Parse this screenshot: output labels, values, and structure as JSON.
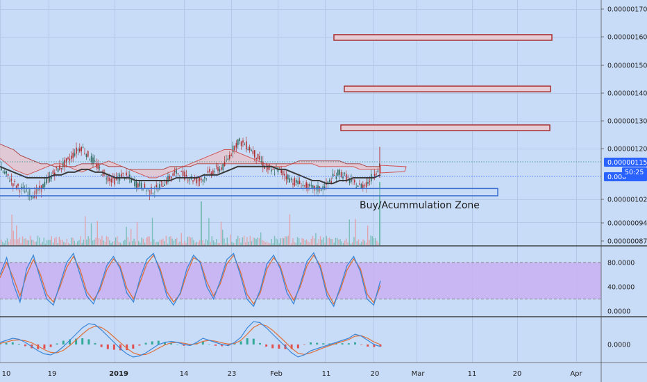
{
  "chart_data": [
    {
      "type": "line",
      "panel": "price",
      "y_axis_ticks": [
        "0.00000170",
        "0.00000160",
        "0.00000150",
        "0.00000140",
        "0.00000130",
        "0.00000120",
        "0.00000115",
        "0.00000102",
        "0.00000094",
        "0.00000087"
      ],
      "ylim": [
        8.6e-07,
        1.745e-06
      ],
      "price_tag": "0.00000115",
      "current_tag": "0.000",
      "countdown": "50:25",
      "close_series": [
        1.13,
        1.11,
        1.08,
        1.06,
        1.05,
        1.04,
        1.06,
        1.09,
        1.12,
        1.14,
        1.16,
        1.19,
        1.21,
        1.18,
        1.15,
        1.12,
        1.1,
        1.09,
        1.11,
        1.1,
        1.08,
        1.07,
        1.05,
        1.06,
        1.08,
        1.1,
        1.12,
        1.11,
        1.1,
        1.09,
        1.1,
        1.12,
        1.13,
        1.14,
        1.19,
        1.23,
        1.22,
        1.2,
        1.17,
        1.14,
        1.12,
        1.13,
        1.11,
        1.09,
        1.08,
        1.07,
        1.06,
        1.06,
        1.07,
        1.1,
        1.12,
        1.1,
        1.08,
        1.07,
        1.08,
        1.11,
        1.15
      ],
      "ichimoku_span_a": [
        1.17,
        1.15,
        1.13,
        1.12,
        1.11,
        1.12,
        1.13,
        1.14,
        1.15,
        1.15,
        1.14,
        1.13,
        1.12,
        1.13,
        1.14,
        1.15,
        1.16,
        1.15,
        1.14,
        1.13,
        1.12,
        1.11,
        1.1,
        1.1,
        1.11,
        1.12,
        1.13,
        1.14,
        1.15,
        1.16,
        1.17,
        1.18,
        1.19,
        1.2,
        1.2,
        1.19,
        1.18,
        1.17,
        1.16,
        1.15,
        1.14,
        1.14,
        1.14,
        1.15,
        1.15,
        1.15,
        1.15,
        1.14,
        1.14,
        1.14,
        1.14,
        1.14,
        1.14,
        1.13,
        1.13,
        1.13,
        1.13
      ],
      "ichimoku_span_b": [
        1.22,
        1.21,
        1.2,
        1.18,
        1.17,
        1.16,
        1.15,
        1.15,
        1.14,
        1.14,
        1.14,
        1.14,
        1.15,
        1.15,
        1.15,
        1.15,
        1.14,
        1.14,
        1.14,
        1.13,
        1.13,
        1.13,
        1.13,
        1.13,
        1.13,
        1.14,
        1.14,
        1.14,
        1.14,
        1.15,
        1.15,
        1.15,
        1.15,
        1.15,
        1.15,
        1.15,
        1.15,
        1.15,
        1.15,
        1.15,
        1.15,
        1.15,
        1.15,
        1.15,
        1.16,
        1.16,
        1.16,
        1.16,
        1.16,
        1.16,
        1.16,
        1.15,
        1.15,
        1.15,
        1.14,
        1.14,
        1.14
      ],
      "moving_average": [
        1.14,
        1.13,
        1.12,
        1.11,
        1.1,
        1.1,
        1.1,
        1.1,
        1.11,
        1.11,
        1.12,
        1.12,
        1.13,
        1.13,
        1.12,
        1.12,
        1.11,
        1.1,
        1.1,
        1.1,
        1.09,
        1.09,
        1.09,
        1.09,
        1.09,
        1.09,
        1.1,
        1.1,
        1.1,
        1.1,
        1.11,
        1.11,
        1.11,
        1.12,
        1.13,
        1.14,
        1.14,
        1.14,
        1.14,
        1.14,
        1.14,
        1.13,
        1.13,
        1.12,
        1.11,
        1.1,
        1.09,
        1.09,
        1.08,
        1.08,
        1.09,
        1.09,
        1.1,
        1.1,
        1.1,
        1.1,
        1.11
      ],
      "annotation": "Buy/Acummulation Zone",
      "zone_range": [
        1.036,
        1.062
      ],
      "target_boxes": [
        {
          "low": 1.589,
          "high": 1.609
        },
        {
          "low": 1.406,
          "high": 1.426
        },
        {
          "low": 1.268,
          "high": 1.288
        }
      ]
    },
    {
      "type": "line",
      "panel": "stochastic",
      "y_axis_ticks": [
        "80.0000",
        "40.0000",
        "0.0000"
      ],
      "ylim": [
        -5,
        100
      ],
      "band": [
        20,
        80
      ],
      "k_series": [
        60,
        88,
        45,
        15,
        70,
        92,
        55,
        20,
        10,
        45,
        80,
        95,
        60,
        25,
        12,
        40,
        75,
        90,
        70,
        30,
        15,
        55,
        85,
        95,
        65,
        25,
        10,
        30,
        70,
        92,
        80,
        40,
        20,
        50,
        85,
        95,
        60,
        20,
        8,
        35,
        78,
        92,
        70,
        30,
        12,
        45,
        82,
        96,
        70,
        25,
        8,
        40,
        75,
        90,
        65,
        20,
        10,
        50
      ],
      "d_series": [
        55,
        80,
        55,
        25,
        60,
        85,
        62,
        28,
        15,
        40,
        72,
        90,
        68,
        32,
        18,
        35,
        68,
        86,
        74,
        38,
        20,
        48,
        78,
        92,
        70,
        32,
        15,
        28,
        62,
        88,
        82,
        48,
        25,
        45,
        78,
        92,
        66,
        28,
        12,
        30,
        70,
        88,
        74,
        38,
        18,
        40,
        75,
        92,
        75,
        32,
        12,
        35,
        68,
        86,
        70,
        28,
        14,
        42
      ]
    },
    {
      "type": "line",
      "panel": "macd",
      "y_axis_ticks": [
        "0.0000"
      ],
      "macd_series": [
        0.1,
        0.2,
        0.3,
        0.25,
        0.1,
        -0.1,
        -0.3,
        -0.45,
        -0.5,
        -0.35,
        -0.1,
        0.2,
        0.5,
        0.8,
        1.0,
        0.95,
        0.7,
        0.4,
        0.1,
        -0.2,
        -0.45,
        -0.6,
        -0.55,
        -0.4,
        -0.2,
        0.0,
        0.1,
        0.15,
        0.1,
        0.0,
        -0.05,
        0.1,
        0.3,
        0.2,
        0.1,
        0.0,
        -0.05,
        0.1,
        0.35,
        0.8,
        1.1,
        1.05,
        0.8,
        0.5,
        0.2,
        -0.1,
        -0.4,
        -0.6,
        -0.5,
        -0.3,
        -0.2,
        -0.1,
        0.0,
        0.1,
        0.2,
        0.3,
        0.5,
        0.4,
        0.2,
        0.0,
        -0.1
      ],
      "signal_series": [
        0.05,
        0.12,
        0.2,
        0.22,
        0.18,
        0.08,
        -0.08,
        -0.25,
        -0.38,
        -0.4,
        -0.28,
        -0.05,
        0.22,
        0.5,
        0.75,
        0.88,
        0.82,
        0.62,
        0.35,
        0.08,
        -0.18,
        -0.4,
        -0.5,
        -0.48,
        -0.35,
        -0.18,
        -0.02,
        0.08,
        0.1,
        0.06,
        0.0,
        0.03,
        0.15,
        0.2,
        0.16,
        0.08,
        0.02,
        0.05,
        0.2,
        0.5,
        0.82,
        0.98,
        0.9,
        0.68,
        0.4,
        0.12,
        -0.18,
        -0.42,
        -0.48,
        -0.4,
        -0.28,
        -0.16,
        -0.05,
        0.05,
        0.14,
        0.24,
        0.4,
        0.42,
        0.3,
        0.12,
        0.0
      ],
      "hist_series": [
        0.05,
        0.08,
        0.1,
        0.03,
        -0.08,
        -0.18,
        -0.22,
        -0.2,
        -0.12,
        0.05,
        0.18,
        0.25,
        0.28,
        0.3,
        0.25,
        0.07,
        -0.12,
        -0.22,
        -0.25,
        -0.28,
        -0.27,
        -0.2,
        -0.05,
        0.08,
        0.15,
        0.18,
        0.12,
        0.07,
        0.0,
        -0.06,
        -0.05,
        0.07,
        0.15,
        0.0,
        -0.06,
        -0.08,
        -0.07,
        0.05,
        0.15,
        0.3,
        0.28,
        0.07,
        -0.1,
        -0.18,
        -0.2,
        -0.22,
        -0.22,
        -0.18,
        -0.02,
        0.1,
        0.08,
        0.06,
        0.05,
        0.05,
        0.06,
        0.06,
        0.1,
        -0.02,
        -0.1,
        -0.12,
        -0.1
      ]
    }
  ],
  "x_axis": {
    "labels": [
      {
        "text": "10",
        "bold": false
      },
      {
        "text": "19",
        "bold": false
      },
      {
        "text": "2019",
        "bold": true
      },
      {
        "text": "14",
        "bold": false
      },
      {
        "text": "23",
        "bold": false
      },
      {
        "text": "Feb",
        "bold": false
      },
      {
        "text": "11",
        "bold": false
      },
      {
        "text": "20",
        "bold": false
      },
      {
        "text": "Mar",
        "bold": false
      },
      {
        "text": "11",
        "bold": false
      },
      {
        "text": "20",
        "bold": false
      },
      {
        "text": "Apr",
        "bold": false
      }
    ]
  },
  "colors": {
    "background": "#c9dcf7",
    "grid": "#b4c9e8",
    "candle_up": "#2f6b5f",
    "candle_down": "#b03030",
    "cloud_fill": "#e7c2c8",
    "span_a": "#d05050",
    "span_b": "#a83a3a",
    "ma": "#3a3a3a",
    "zone": "#3b6fd4",
    "target_box": "#a83232",
    "target_fill": "#e6ccd4",
    "stoch_band": "#c8b0f2",
    "stoch_k": "#3a86d8",
    "stoch_d": "#e0703a",
    "macd": "#3a86d8",
    "signal": "#e0703a",
    "hist_up": "#33aa99",
    "hist_down": "#e05050",
    "tag": "#2962ff"
  }
}
